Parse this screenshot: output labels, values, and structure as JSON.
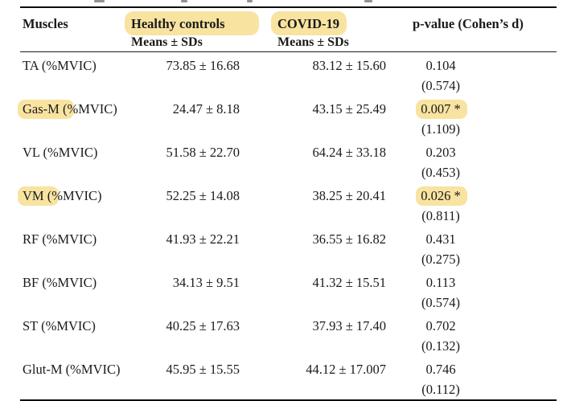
{
  "highlight_color": "#f8e3a0",
  "table": {
    "header": {
      "muscles": "Muscles",
      "healthy_label": "Healthy controls",
      "healthy_sub": "Means ± SDs",
      "covid_label": "COVID-19",
      "covid_sub": "Means ± SDs",
      "pvalue_label": "p-value (Cohen’s d)"
    },
    "rows": [
      {
        "muscle": "TA",
        "suffix": " (%MVIC)",
        "healthy": "73.85 ± 16.68",
        "covid": "83.12 ± 15.60",
        "p": "0.104",
        "cohens_d": "(0.574)",
        "muscle_highlighted": false,
        "p_highlighted": false
      },
      {
        "muscle": "Gas-M",
        "suffix": " (%MVIC)",
        "healthy": "24.47 ± 8.18",
        "covid": "43.15 ± 25.49",
        "p": "0.007 *",
        "cohens_d": "(1.109)",
        "muscle_highlighted": true,
        "p_highlighted": true
      },
      {
        "muscle": "VL",
        "suffix": " (%MVIC)",
        "healthy": "51.58 ± 22.70",
        "covid": "64.24 ± 33.18",
        "p": "0.203",
        "cohens_d": "(0.453)",
        "muscle_highlighted": false,
        "p_highlighted": false
      },
      {
        "muscle": "VM",
        "suffix": " (%MVIC)",
        "healthy": "52.25 ± 14.08",
        "covid": "38.25 ± 20.41",
        "p": "0.026 *",
        "cohens_d": "(0.811)",
        "muscle_highlighted": true,
        "p_highlighted": true
      },
      {
        "muscle": "RF",
        "suffix": " (%MVIC)",
        "healthy": "41.93 ± 22.21",
        "covid": "36.55 ± 16.82",
        "p": "0.431",
        "cohens_d": "(0.275)",
        "muscle_highlighted": false,
        "p_highlighted": false
      },
      {
        "muscle": "BF",
        "suffix": " (%MVIC)",
        "healthy": "34.13 ± 9.51",
        "covid": "41.32 ± 15.51",
        "p": "0.113",
        "cohens_d": "(0.574)",
        "muscle_highlighted": false,
        "p_highlighted": false
      },
      {
        "muscle": "ST",
        "suffix": " (%MVIC)",
        "healthy": "40.25 ± 17.63",
        "covid": "37.93 ± 17.40",
        "p": "0.702",
        "cohens_d": "(0.132)",
        "muscle_highlighted": false,
        "p_highlighted": false
      },
      {
        "muscle": "Glut-M",
        "suffix": " (%MVIC)",
        "healthy": "45.95 ± 15.55",
        "covid": "44.12 ± 17.007",
        "p": "0.746",
        "cohens_d": "(0.112)",
        "muscle_highlighted": false,
        "p_highlighted": false
      }
    ]
  }
}
